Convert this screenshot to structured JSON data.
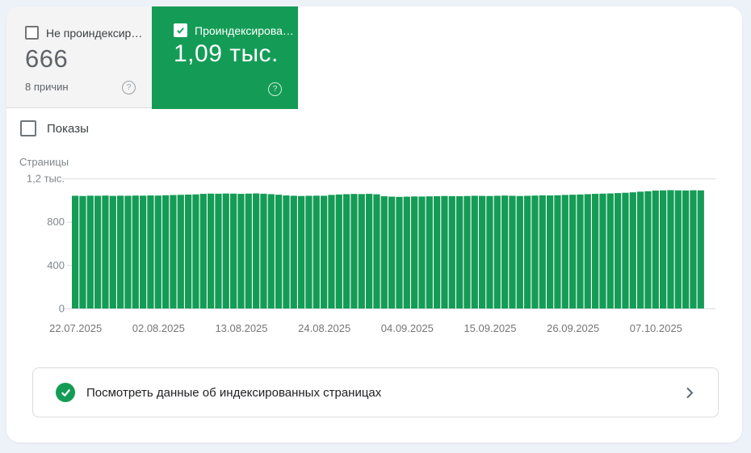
{
  "cards": {
    "not_indexed": {
      "label": "Не проиндексир…",
      "value": "666",
      "sub": "8 причин"
    },
    "indexed": {
      "label": "Проиндексирова…",
      "value": "1,09 тыс."
    }
  },
  "impressions_toggle": {
    "label": "Показы"
  },
  "chart_data": {
    "type": "bar",
    "title": "Страницы",
    "ylabel": "Страницы",
    "ylim": [
      0,
      1200
    ],
    "y_ticks": [
      {
        "label": "1,2 тыс.",
        "value": 1200
      },
      {
        "label": "800",
        "value": 800
      },
      {
        "label": "400",
        "value": 400
      },
      {
        "label": "0",
        "value": 0
      }
    ],
    "x_tick_labels": [
      "22.07.2025",
      "02.08.2025",
      "13.08.2025",
      "24.08.2025",
      "04.09.2025",
      "15.09.2025",
      "26.09.2025",
      "07.10.2025"
    ],
    "x_tick_indices": [
      0,
      11,
      22,
      33,
      44,
      55,
      66,
      77
    ],
    "values": [
      1040,
      1038,
      1041,
      1040,
      1042,
      1039,
      1041,
      1040,
      1042,
      1041,
      1043,
      1042,
      1045,
      1047,
      1049,
      1051,
      1053,
      1058,
      1060,
      1059,
      1061,
      1060,
      1058,
      1060,
      1062,
      1059,
      1055,
      1050,
      1043,
      1040,
      1038,
      1040,
      1041,
      1040,
      1048,
      1052,
      1055,
      1057,
      1056,
      1058,
      1054,
      1036,
      1032,
      1030,
      1032,
      1034,
      1033,
      1035,
      1036,
      1038,
      1037,
      1036,
      1038,
      1040,
      1039,
      1038,
      1040,
      1042,
      1040,
      1038,
      1040,
      1042,
      1044,
      1043,
      1045,
      1048,
      1050,
      1052,
      1055,
      1058,
      1060,
      1062,
      1065,
      1068,
      1072,
      1078,
      1082,
      1088,
      1090,
      1092,
      1090,
      1089,
      1091,
      1090
    ],
    "bar_color": "#149c56",
    "grid_on": true,
    "legend_position": "none"
  },
  "footer_card": {
    "label": "Посмотреть данные об индексированных страницах"
  },
  "colors": {
    "accent_green": "#149c56",
    "grid_line": "#dadce0",
    "axis_label": "#80868b",
    "date_label": "#757575"
  }
}
